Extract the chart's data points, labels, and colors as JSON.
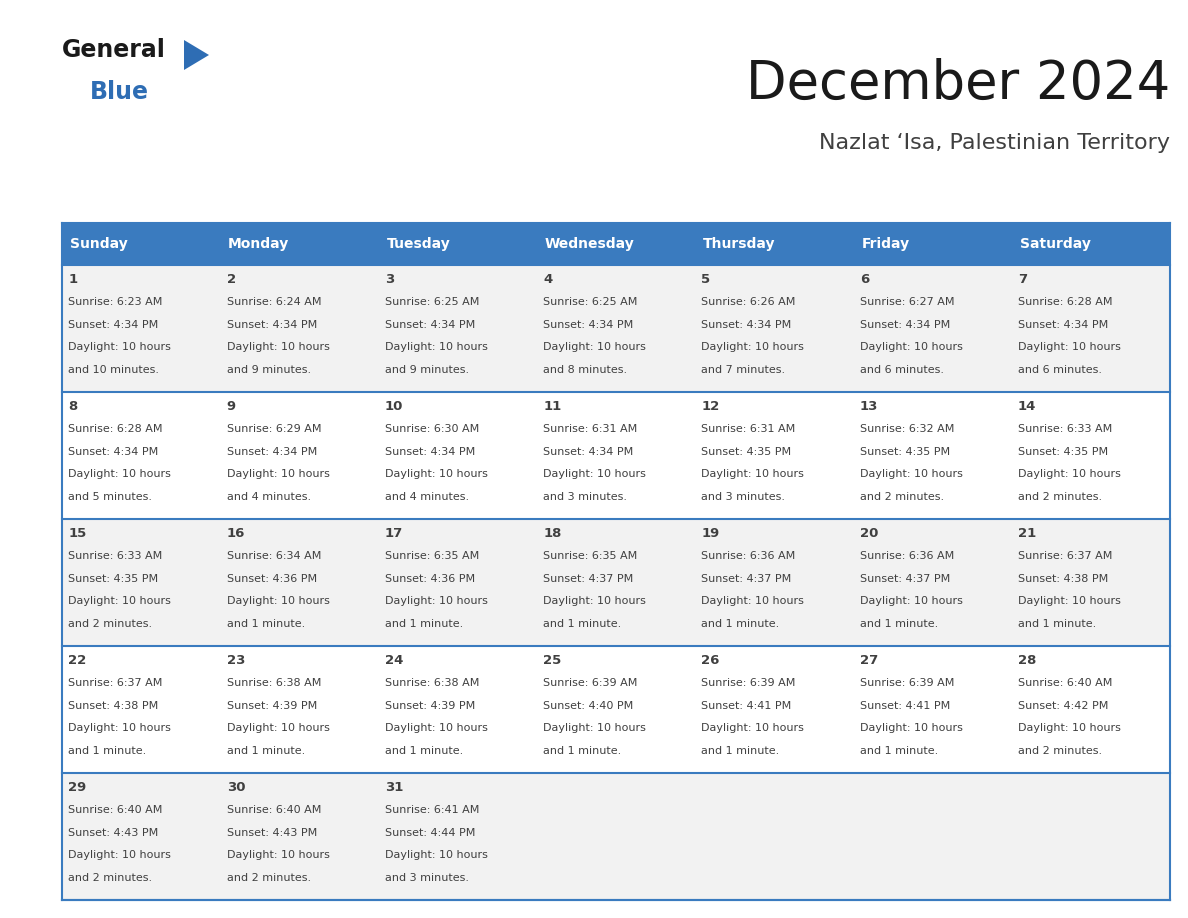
{
  "title": "December 2024",
  "subtitle": "Nazlat ‘Isa, Palestinian Territory",
  "header_bg": "#3a7bbf",
  "header_text": "#ffffff",
  "cell_bg_odd": "#f2f2f2",
  "cell_bg_even": "#ffffff",
  "grid_line_color": "#3a7bbf",
  "text_color": "#404040",
  "days_of_week": [
    "Sunday",
    "Monday",
    "Tuesday",
    "Wednesday",
    "Thursday",
    "Friday",
    "Saturday"
  ],
  "calendar": [
    [
      {
        "day": 1,
        "sunrise": "6:23 AM",
        "sunset": "4:34 PM",
        "daylight": "10 hours\nand 10 minutes."
      },
      {
        "day": 2,
        "sunrise": "6:24 AM",
        "sunset": "4:34 PM",
        "daylight": "10 hours\nand 9 minutes."
      },
      {
        "day": 3,
        "sunrise": "6:25 AM",
        "sunset": "4:34 PM",
        "daylight": "10 hours\nand 9 minutes."
      },
      {
        "day": 4,
        "sunrise": "6:25 AM",
        "sunset": "4:34 PM",
        "daylight": "10 hours\nand 8 minutes."
      },
      {
        "day": 5,
        "sunrise": "6:26 AM",
        "sunset": "4:34 PM",
        "daylight": "10 hours\nand 7 minutes."
      },
      {
        "day": 6,
        "sunrise": "6:27 AM",
        "sunset": "4:34 PM",
        "daylight": "10 hours\nand 6 minutes."
      },
      {
        "day": 7,
        "sunrise": "6:28 AM",
        "sunset": "4:34 PM",
        "daylight": "10 hours\nand 6 minutes."
      }
    ],
    [
      {
        "day": 8,
        "sunrise": "6:28 AM",
        "sunset": "4:34 PM",
        "daylight": "10 hours\nand 5 minutes."
      },
      {
        "day": 9,
        "sunrise": "6:29 AM",
        "sunset": "4:34 PM",
        "daylight": "10 hours\nand 4 minutes."
      },
      {
        "day": 10,
        "sunrise": "6:30 AM",
        "sunset": "4:34 PM",
        "daylight": "10 hours\nand 4 minutes."
      },
      {
        "day": 11,
        "sunrise": "6:31 AM",
        "sunset": "4:34 PM",
        "daylight": "10 hours\nand 3 minutes."
      },
      {
        "day": 12,
        "sunrise": "6:31 AM",
        "sunset": "4:35 PM",
        "daylight": "10 hours\nand 3 minutes."
      },
      {
        "day": 13,
        "sunrise": "6:32 AM",
        "sunset": "4:35 PM",
        "daylight": "10 hours\nand 2 minutes."
      },
      {
        "day": 14,
        "sunrise": "6:33 AM",
        "sunset": "4:35 PM",
        "daylight": "10 hours\nand 2 minutes."
      }
    ],
    [
      {
        "day": 15,
        "sunrise": "6:33 AM",
        "sunset": "4:35 PM",
        "daylight": "10 hours\nand 2 minutes."
      },
      {
        "day": 16,
        "sunrise": "6:34 AM",
        "sunset": "4:36 PM",
        "daylight": "10 hours\nand 1 minute."
      },
      {
        "day": 17,
        "sunrise": "6:35 AM",
        "sunset": "4:36 PM",
        "daylight": "10 hours\nand 1 minute."
      },
      {
        "day": 18,
        "sunrise": "6:35 AM",
        "sunset": "4:37 PM",
        "daylight": "10 hours\nand 1 minute."
      },
      {
        "day": 19,
        "sunrise": "6:36 AM",
        "sunset": "4:37 PM",
        "daylight": "10 hours\nand 1 minute."
      },
      {
        "day": 20,
        "sunrise": "6:36 AM",
        "sunset": "4:37 PM",
        "daylight": "10 hours\nand 1 minute."
      },
      {
        "day": 21,
        "sunrise": "6:37 AM",
        "sunset": "4:38 PM",
        "daylight": "10 hours\nand 1 minute."
      }
    ],
    [
      {
        "day": 22,
        "sunrise": "6:37 AM",
        "sunset": "4:38 PM",
        "daylight": "10 hours\nand 1 minute."
      },
      {
        "day": 23,
        "sunrise": "6:38 AM",
        "sunset": "4:39 PM",
        "daylight": "10 hours\nand 1 minute."
      },
      {
        "day": 24,
        "sunrise": "6:38 AM",
        "sunset": "4:39 PM",
        "daylight": "10 hours\nand 1 minute."
      },
      {
        "day": 25,
        "sunrise": "6:39 AM",
        "sunset": "4:40 PM",
        "daylight": "10 hours\nand 1 minute."
      },
      {
        "day": 26,
        "sunrise": "6:39 AM",
        "sunset": "4:41 PM",
        "daylight": "10 hours\nand 1 minute."
      },
      {
        "day": 27,
        "sunrise": "6:39 AM",
        "sunset": "4:41 PM",
        "daylight": "10 hours\nand 1 minute."
      },
      {
        "day": 28,
        "sunrise": "6:40 AM",
        "sunset": "4:42 PM",
        "daylight": "10 hours\nand 2 minutes."
      }
    ],
    [
      {
        "day": 29,
        "sunrise": "6:40 AM",
        "sunset": "4:43 PM",
        "daylight": "10 hours\nand 2 minutes."
      },
      {
        "day": 30,
        "sunrise": "6:40 AM",
        "sunset": "4:43 PM",
        "daylight": "10 hours\nand 2 minutes."
      },
      {
        "day": 31,
        "sunrise": "6:41 AM",
        "sunset": "4:44 PM",
        "daylight": "10 hours\nand 3 minutes."
      },
      null,
      null,
      null,
      null
    ]
  ],
  "logo_text_general": "General",
  "logo_text_blue": "Blue",
  "logo_color_black": "#1a1a1a",
  "logo_color_blue": "#2e6db4",
  "logo_triangle_color": "#2e6db4"
}
